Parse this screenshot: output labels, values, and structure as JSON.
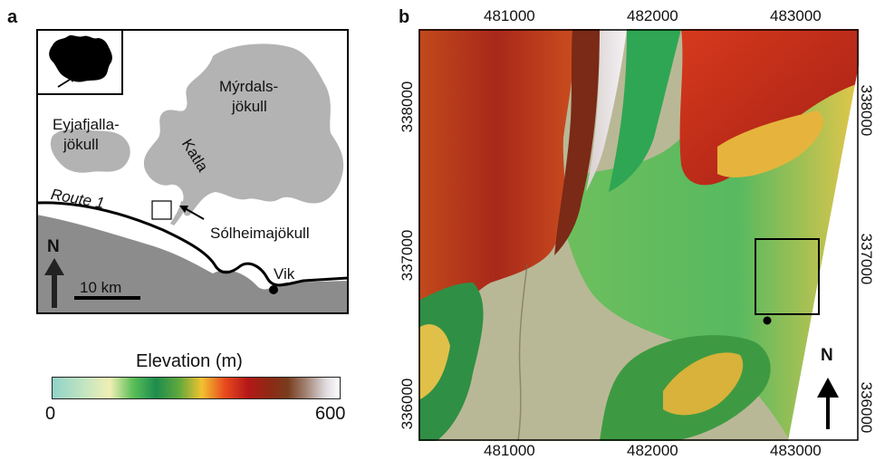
{
  "panel_a": {
    "letter": "a",
    "labels": {
      "eyjafjalla_1": "Eyjafjalla-",
      "eyjafjalla_2": "jökull",
      "myrdals_1": "Mýrdals-",
      "myrdals_2": "jökull",
      "katla": "Katla",
      "route": "Route 1",
      "solheima": "Sólheimajökull",
      "vik": "Vik",
      "north": "N",
      "scale": "10 km"
    }
  },
  "legend": {
    "title": "Elevation (m)",
    "min": "0",
    "max": "600"
  },
  "panel_b": {
    "letter": "b",
    "x_ticks": [
      "481000",
      "482000",
      "483000"
    ],
    "y_ticks": [
      "338000",
      "337000",
      "336000"
    ],
    "north": "N"
  }
}
